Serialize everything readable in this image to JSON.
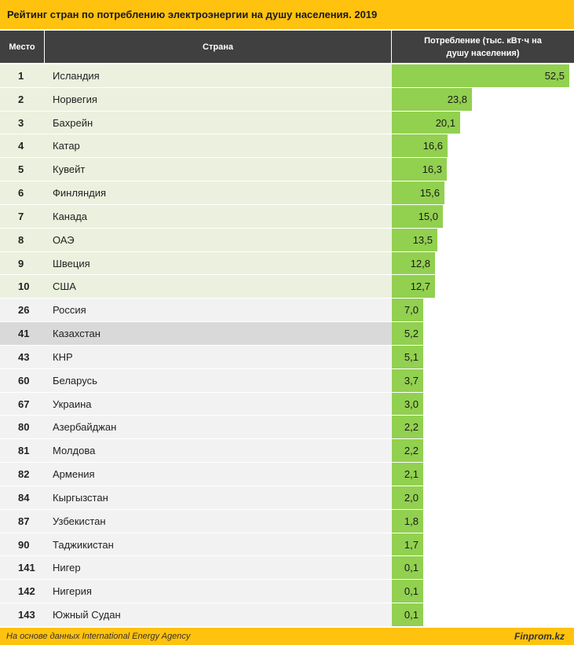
{
  "title": "Рейтинг стран по потреблению электроэнергии на душу населения. 2019",
  "headers": {
    "rank": "Место",
    "country": "Страна",
    "value": "Потребление (тыс. кВт·ч на душу населения)"
  },
  "colors": {
    "title_bar": "#ffc20e",
    "header": "#404040",
    "bar": "#92d050",
    "top10_row": "#ebf1de",
    "other_row": "#f2f2f2",
    "highlight_row": "#d9d9d9"
  },
  "chart_data": {
    "type": "bar",
    "orientation": "horizontal",
    "title": "Рейтинг стран по потреблению электроэнергии на душу населения. 2019",
    "value_label": "Потребление (тыс. кВт·ч на душу населения)",
    "rows": [
      {
        "rank": "1",
        "country": "Исландия",
        "value": 52.5,
        "label": "52,5",
        "group": "top10"
      },
      {
        "rank": "2",
        "country": "Норвегия",
        "value": 23.8,
        "label": "23,8",
        "group": "top10"
      },
      {
        "rank": "3",
        "country": "Бахрейн",
        "value": 20.1,
        "label": "20,1",
        "group": "top10"
      },
      {
        "rank": "4",
        "country": "Катар",
        "value": 16.6,
        "label": "16,6",
        "group": "top10"
      },
      {
        "rank": "5",
        "country": "Кувейт",
        "value": 16.3,
        "label": "16,3",
        "group": "top10"
      },
      {
        "rank": "6",
        "country": "Финляндия",
        "value": 15.6,
        "label": "15,6",
        "group": "top10"
      },
      {
        "rank": "7",
        "country": "Канада",
        "value": 15.0,
        "label": "15,0",
        "group": "top10"
      },
      {
        "rank": "8",
        "country": "ОАЭ",
        "value": 13.5,
        "label": "13,5",
        "group": "top10"
      },
      {
        "rank": "9",
        "country": "Швеция",
        "value": 12.8,
        "label": "12,8",
        "group": "top10"
      },
      {
        "rank": "10",
        "country": "США",
        "value": 12.7,
        "label": "12,7",
        "group": "top10"
      },
      {
        "rank": "26",
        "country": "Россия",
        "value": 7.0,
        "label": "7,0",
        "group": "other"
      },
      {
        "rank": "41",
        "country": "Казахстан",
        "value": 5.2,
        "label": "5,2",
        "group": "highlight"
      },
      {
        "rank": "43",
        "country": "КНР",
        "value": 5.1,
        "label": "5,1",
        "group": "other"
      },
      {
        "rank": "60",
        "country": "Беларусь",
        "value": 3.7,
        "label": "3,7",
        "group": "other"
      },
      {
        "rank": "67",
        "country": "Украина",
        "value": 3.0,
        "label": "3,0",
        "group": "other"
      },
      {
        "rank": "80",
        "country": "Азербайджан",
        "value": 2.2,
        "label": "2,2",
        "group": "other"
      },
      {
        "rank": "81",
        "country": "Молдова",
        "value": 2.2,
        "label": "2,2",
        "group": "other"
      },
      {
        "rank": "82",
        "country": "Армения",
        "value": 2.1,
        "label": "2,1",
        "group": "other"
      },
      {
        "rank": "84",
        "country": "Кыргызстан",
        "value": 2.0,
        "label": "2,0",
        "group": "other"
      },
      {
        "rank": "87",
        "country": "Узбекистан",
        "value": 1.8,
        "label": "1,8",
        "group": "other"
      },
      {
        "rank": "90",
        "country": "Таджикистан",
        "value": 1.7,
        "label": "1,7",
        "group": "other"
      },
      {
        "rank": "141",
        "country": "Нигер",
        "value": 0.1,
        "label": "0,1",
        "group": "other"
      },
      {
        "rank": "142",
        "country": "Нигерия",
        "value": 0.1,
        "label": "0,1",
        "group": "other"
      },
      {
        "rank": "143",
        "country": "Южный Судан",
        "value": 0.1,
        "label": "0,1",
        "group": "other"
      }
    ]
  },
  "footer": {
    "source": "На основе данных International Energy Agency",
    "brand": "Finprom.kz"
  }
}
